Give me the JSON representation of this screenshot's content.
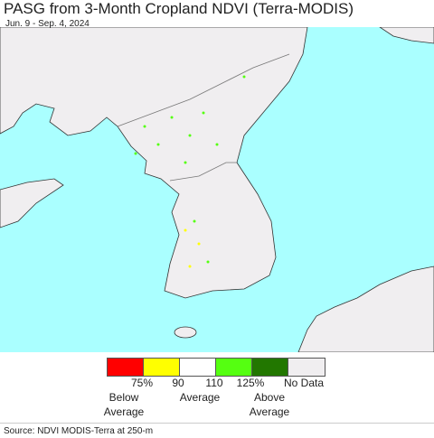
{
  "header": {
    "title": "PASG from 3-Month Cropland NDVI (Terra-MODIS)",
    "subtitle": "Jun. 9 - Sep. 4, 2024"
  },
  "legend": {
    "colors": [
      "#ff0000",
      "#ffff00",
      "#ffffff",
      "#55ff11",
      "#227700",
      "#f0eef0"
    ],
    "ticks": [
      "75%",
      "90",
      "110",
      "125%"
    ],
    "no_data": "No Data",
    "labels": [
      "Below Average",
      "Average",
      "Above Average"
    ]
  },
  "footer": {
    "source": "Source: NDVI MODIS-Terra at 250-m"
  }
}
